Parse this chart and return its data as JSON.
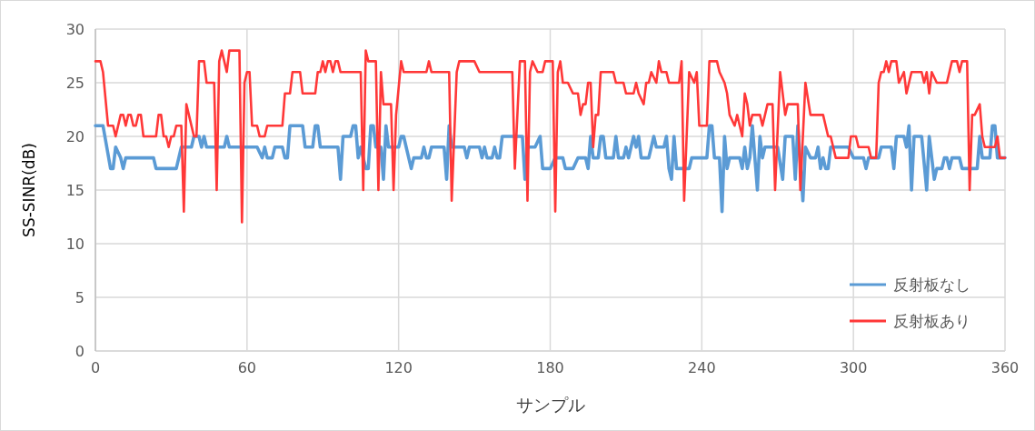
{
  "chart_data": {
    "type": "line",
    "xlabel": "サンプル",
    "ylabel": "SS-SINR(dB)",
    "xlim": [
      0,
      360
    ],
    "xticks": [
      0,
      60,
      120,
      180,
      240,
      300,
      360
    ],
    "ylim": [
      0,
      30
    ],
    "yticks": [
      0,
      5,
      10,
      15,
      20,
      25,
      30
    ],
    "grid": true,
    "legend": "bottom right",
    "line_style": "solid",
    "marker": "none",
    "series": [
      {
        "name": "反射板なし",
        "color": "#5b9bd5",
        "x": [
          0,
          3,
          6,
          7,
          8,
          10,
          11,
          12,
          23,
          24,
          32,
          34,
          38,
          39,
          41,
          42,
          43,
          44,
          51,
          52,
          53,
          64,
          66,
          67,
          68,
          70,
          71,
          74,
          75,
          76,
          77,
          82,
          83,
          86,
          87,
          88,
          89,
          96,
          97,
          98,
          101,
          102,
          103,
          104,
          105,
          107,
          108,
          109,
          110,
          111,
          113,
          114,
          115,
          116,
          120,
          121,
          122,
          124,
          125,
          126,
          129,
          130,
          131,
          132,
          133,
          138,
          139,
          140,
          141,
          146,
          147,
          148,
          152,
          153,
          154,
          155,
          157,
          158,
          159,
          160,
          161,
          169,
          170,
          171,
          174,
          176,
          177,
          180,
          182,
          185,
          186,
          189,
          191,
          194,
          195,
          196,
          197,
          199,
          200,
          201,
          202,
          205,
          206,
          207,
          209,
          210,
          211,
          213,
          214,
          215,
          216,
          219,
          221,
          222,
          225,
          226,
          227,
          228,
          229,
          230,
          235,
          236,
          242,
          243,
          244,
          245,
          247,
          248,
          249,
          250,
          251,
          255,
          256,
          257,
          258,
          259,
          260,
          262,
          263,
          264,
          265,
          270,
          272,
          273,
          276,
          277,
          278,
          280,
          281,
          283,
          285,
          286,
          287,
          288,
          289,
          290,
          291,
          298,
          300,
          304,
          305,
          306,
          310,
          311,
          315,
          316,
          317,
          320,
          321,
          322,
          323,
          324,
          327,
          329,
          330,
          332,
          333,
          335,
          336,
          337,
          338,
          339,
          342,
          343,
          349,
          350,
          351,
          354,
          355,
          356,
          357,
          360
        ],
        "values": [
          21,
          21,
          17,
          17,
          19,
          18,
          17,
          18,
          18,
          17,
          17,
          19,
          19,
          20,
          20,
          19,
          20,
          19,
          19,
          20,
          19,
          19,
          18,
          19,
          18,
          18,
          19,
          19,
          18,
          18,
          21,
          21,
          19,
          19,
          21,
          21,
          19,
          19,
          16,
          20,
          20,
          21,
          21,
          18,
          19,
          17,
          17,
          21,
          21,
          19,
          19,
          16,
          21,
          19,
          19,
          20,
          20,
          18,
          17,
          18,
          18,
          19,
          18,
          18,
          19,
          19,
          16,
          21,
          19,
          19,
          18,
          19,
          19,
          18,
          19,
          18,
          18,
          19,
          18,
          18,
          20,
          20,
          16,
          19,
          19,
          20,
          17,
          17,
          18,
          18,
          17,
          17,
          18,
          18,
          17,
          20,
          18,
          18,
          20,
          20,
          18,
          18,
          20,
          18,
          18,
          19,
          18,
          20,
          19,
          20,
          18,
          18,
          20,
          19,
          19,
          20,
          17,
          16,
          20,
          17,
          17,
          18,
          18,
          21,
          21,
          18,
          18,
          13,
          20,
          17,
          18,
          18,
          17,
          19,
          17,
          18,
          21,
          15,
          20,
          18,
          19,
          19,
          16,
          20,
          20,
          16,
          21,
          14,
          19,
          18,
          18,
          19,
          17,
          18,
          17,
          17,
          19,
          19,
          18,
          18,
          17,
          18,
          18,
          19,
          19,
          17,
          20,
          20,
          19,
          21,
          15,
          20,
          20,
          15,
          20,
          16,
          17,
          17,
          18,
          18,
          17,
          18,
          18,
          17,
          17,
          20,
          18,
          18,
          21,
          21,
          18,
          18
        ]
      },
      {
        "name": "反射板あり",
        "color": "#ff3838",
        "x": [
          0,
          2,
          3,
          5,
          7,
          8,
          10,
          11,
          12,
          13,
          14,
          15,
          16,
          17,
          18,
          19,
          24,
          25,
          26,
          27,
          28,
          29,
          30,
          31,
          32,
          34,
          35,
          36,
          37,
          39,
          40,
          41,
          43,
          44,
          47,
          48,
          49,
          50,
          52,
          53,
          57,
          58,
          59,
          60,
          61,
          62,
          64,
          65,
          67,
          68,
          74,
          75,
          77,
          78,
          81,
          82,
          87,
          88,
          89,
          90,
          91,
          92,
          93,
          94,
          95,
          96,
          97,
          105,
          106,
          107,
          108,
          111,
          112,
          113,
          114,
          117,
          118,
          119,
          121,
          122,
          131,
          132,
          133,
          140,
          141,
          143,
          144,
          150,
          152,
          165,
          166,
          168,
          170,
          171,
          172,
          173,
          175,
          177,
          178,
          181,
          182,
          183,
          184,
          185,
          187,
          189,
          191,
          192,
          193,
          194,
          195,
          196,
          197,
          198,
          199,
          200,
          205,
          206,
          209,
          210,
          213,
          214,
          215,
          217,
          218,
          219,
          220,
          222,
          223,
          224,
          226,
          227,
          231,
          232,
          233,
          235,
          237,
          238,
          239,
          242,
          243,
          246,
          247,
          249,
          250,
          251,
          253,
          254,
          255,
          256,
          257,
          258,
          259,
          260,
          263,
          264,
          266,
          268,
          269,
          271,
          273,
          274,
          278,
          279,
          281,
          283,
          288,
          290,
          291,
          292,
          293,
          298,
          299,
          301,
          302,
          306,
          307,
          309,
          310,
          311,
          312,
          313,
          314,
          315,
          317,
          318,
          320,
          321,
          323,
          327,
          328,
          329,
          330,
          331,
          333,
          337,
          339,
          341,
          342,
          343,
          345,
          346,
          347,
          348,
          350,
          351,
          352,
          356,
          357,
          358,
          360
        ],
        "values": [
          27,
          27,
          26,
          21,
          21,
          20,
          22,
          22,
          21,
          22,
          22,
          21,
          21,
          22,
          22,
          20,
          20,
          22,
          22,
          20,
          20,
          19,
          20,
          20,
          21,
          21,
          13,
          23,
          22,
          20,
          20,
          27,
          27,
          25,
          25,
          15,
          27,
          28,
          26,
          28,
          28,
          12,
          25,
          26,
          26,
          21,
          21,
          20,
          20,
          21,
          21,
          24,
          24,
          26,
          26,
          24,
          24,
          26,
          26,
          27,
          26,
          27,
          27,
          26,
          27,
          27,
          26,
          26,
          15,
          28,
          27,
          27,
          15,
          26,
          23,
          23,
          15,
          22,
          27,
          26,
          26,
          27,
          26,
          26,
          14,
          26,
          27,
          27,
          26,
          26,
          17,
          27,
          27,
          14,
          26,
          27,
          26,
          26,
          27,
          27,
          13,
          26,
          27,
          25,
          25,
          24,
          24,
          22,
          23,
          23,
          25,
          25,
          19,
          22,
          22,
          26,
          26,
          25,
          25,
          24,
          24,
          25,
          24,
          23,
          25,
          25,
          26,
          25,
          27,
          26,
          26,
          25,
          25,
          27,
          14,
          26,
          25,
          26,
          21,
          21,
          27,
          27,
          26,
          25,
          24,
          22,
          21,
          22,
          21,
          20,
          24,
          23,
          21,
          22,
          22,
          21,
          23,
          23,
          15,
          26,
          22,
          23,
          23,
          15,
          25,
          22,
          22,
          20,
          20,
          19,
          18,
          18,
          20,
          20,
          19,
          19,
          18,
          18,
          25,
          26,
          26,
          27,
          26,
          27,
          27,
          25,
          26,
          24,
          26,
          26,
          25,
          26,
          24,
          26,
          25,
          25,
          27,
          27,
          26,
          27,
          27,
          15,
          22,
          22,
          23,
          20,
          19,
          19,
          20,
          18,
          18
        ]
      }
    ]
  }
}
